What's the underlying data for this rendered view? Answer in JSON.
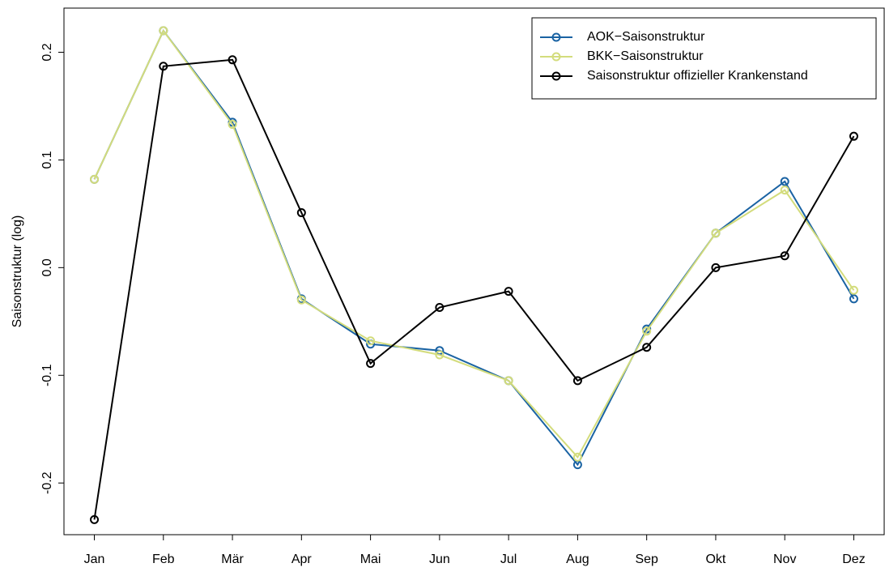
{
  "chart_data": {
    "type": "line",
    "y_label": "Saisonstruktur (log)",
    "categories": [
      "Jan",
      "Feb",
      "Mär",
      "Apr",
      "Mai",
      "Jun",
      "Jul",
      "Aug",
      "Sep",
      "Okt",
      "Nov",
      "Dez"
    ],
    "series": [
      {
        "name": "AOK−Saisonstruktur",
        "color": "#1a63a3",
        "values": [
          0.082,
          0.22,
          0.135,
          -0.029,
          -0.071,
          -0.077,
          -0.105,
          -0.183,
          -0.057,
          0.032,
          0.08,
          -0.029
        ]
      },
      {
        "name": "BKK−Saisonstruktur",
        "color": "#d3dc7c",
        "values": [
          0.082,
          0.22,
          0.133,
          -0.03,
          -0.068,
          -0.081,
          -0.105,
          -0.176,
          -0.059,
          0.032,
          0.072,
          -0.021
        ]
      },
      {
        "name": "Saisonstruktur offizieller Krankenstand",
        "color": "#000000",
        "values": [
          -0.234,
          0.187,
          0.193,
          0.051,
          -0.089,
          -0.037,
          -0.022,
          -0.105,
          -0.074,
          0.0,
          0.011,
          0.122
        ]
      }
    ],
    "ylim": [
      -0.248,
      0.241
    ],
    "yticks": [
      -0.2,
      -0.1,
      {
        "value": 0,
        "label": "0.0"
      },
      0.1,
      0.2
    ],
    "grid": false,
    "legend": "topright"
  }
}
